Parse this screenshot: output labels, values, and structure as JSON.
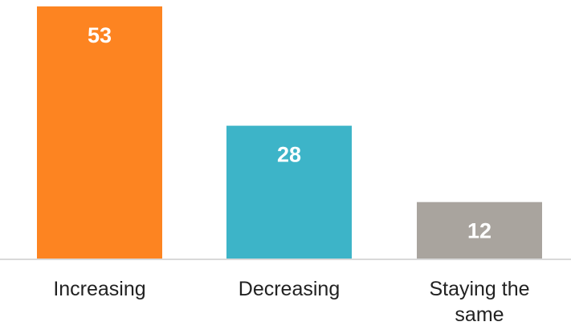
{
  "chart_data": {
    "type": "bar",
    "title": "",
    "xlabel": "",
    "ylabel": "",
    "categories": [
      "Increasing",
      "Decreasing",
      "Staying the same"
    ],
    "category_label_lines": [
      [
        "Increasing"
      ],
      [
        "Decreasing"
      ],
      [
        "Staying the",
        "same"
      ]
    ],
    "values": [
      53,
      28,
      12
    ],
    "data_labels": [
      "53",
      "28",
      "12"
    ],
    "colors": [
      "#fd8421",
      "#3db4c8",
      "#a9a49e"
    ],
    "ylim": [
      0,
      53
    ],
    "grid": false,
    "legend": "none"
  }
}
